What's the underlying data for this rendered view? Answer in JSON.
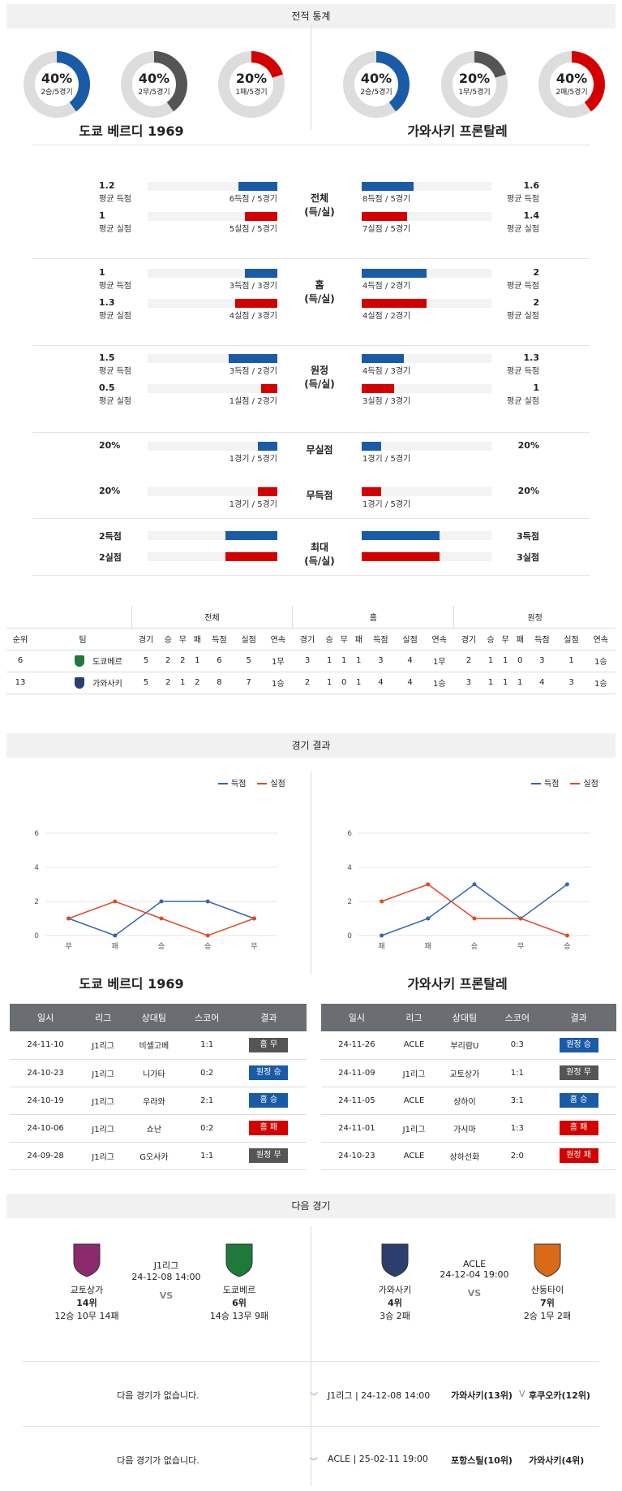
{
  "sections": {
    "stats": "전적 통계",
    "results": "경기 결과",
    "next": "다음 경기"
  },
  "donuts": [
    {
      "pct": "40%",
      "sub": "2승/5경기",
      "value": 0.4,
      "color": "#1a5ba8"
    },
    {
      "pct": "40%",
      "sub": "2무/5경기",
      "value": 0.4,
      "color": "#555555"
    },
    {
      "pct": "20%",
      "sub": "1패/5경기",
      "value": 0.2,
      "color": "#d40000"
    },
    {
      "pct": "40%",
      "sub": "2승/5경기",
      "value": 0.4,
      "color": "#1a5ba8"
    },
    {
      "pct": "20%",
      "sub": "1무/5경기",
      "value": 0.2,
      "color": "#555555"
    },
    {
      "pct": "40%",
      "sub": "2패/5경기",
      "value": 0.4,
      "color": "#d40000"
    }
  ],
  "teams": {
    "home": "도쿄 베르디 1969",
    "away": "가와사키 프론탈레"
  },
  "stat_groups": [
    {
      "mid": [
        "전체",
        "(득/실)"
      ],
      "rows": [
        {
          "l_num": "1.2",
          "l_lbl": "평균 득점",
          "l_cnt": "6득점 / 5경기",
          "l_val": 1.2,
          "r_num": "1.6",
          "r_lbl": "평균 득점",
          "r_cnt": "8득점 / 5경기",
          "r_val": 1.6,
          "color": "blue"
        },
        {
          "l_num": "1",
          "l_lbl": "평균 실점",
          "l_cnt": "5실점 / 5경기",
          "l_val": 1,
          "r_num": "1.4",
          "r_lbl": "평균 실점",
          "r_cnt": "7실점 / 5경기",
          "r_val": 1.4,
          "color": "red"
        }
      ]
    },
    {
      "mid": [
        "홈",
        "(득/실)"
      ],
      "rows": [
        {
          "l_num": "1",
          "l_lbl": "평균 득점",
          "l_cnt": "3득점 / 3경기",
          "l_val": 1,
          "r_num": "2",
          "r_lbl": "평균 득점",
          "r_cnt": "4득점 / 2경기",
          "r_val": 2,
          "color": "blue"
        },
        {
          "l_num": "1.3",
          "l_lbl": "평균 실점",
          "l_cnt": "4실점 / 3경기",
          "l_val": 1.3,
          "r_num": "2",
          "r_lbl": "평균 실점",
          "r_cnt": "4실점 / 2경기",
          "r_val": 2,
          "color": "red"
        }
      ]
    },
    {
      "mid": [
        "원정",
        "(득/실)"
      ],
      "rows": [
        {
          "l_num": "1.5",
          "l_lbl": "평균 득점",
          "l_cnt": "3득점 / 2경기",
          "l_val": 1.5,
          "r_num": "1.3",
          "r_lbl": "평균 득점",
          "r_cnt": "4득점 / 3경기",
          "r_val": 1.3,
          "color": "blue"
        },
        {
          "l_num": "0.5",
          "l_lbl": "평균 실점",
          "l_cnt": "1실점 / 2경기",
          "l_val": 0.5,
          "r_num": "1",
          "r_lbl": "평균 실점",
          "r_cnt": "3실점 / 3경기",
          "r_val": 1,
          "color": "red"
        }
      ]
    },
    {
      "mid": [
        "무실점",
        ""
      ],
      "rows": [
        {
          "l_num": "20%",
          "l_lbl": "",
          "l_cnt": "1경기 / 5경기",
          "l_val": 0.6,
          "r_num": "20%",
          "r_lbl": "",
          "r_cnt": "1경기 / 5경기",
          "r_val": 0.6,
          "color": "blue"
        }
      ]
    },
    {
      "mid": [
        "무득점",
        ""
      ],
      "rows": [
        {
          "l_num": "20%",
          "l_lbl": "",
          "l_cnt": "1경기 / 5경기",
          "l_val": 0.6,
          "r_num": "20%",
          "r_lbl": "",
          "r_cnt": "1경기 / 5경기",
          "r_val": 0.6,
          "color": "red"
        }
      ]
    },
    {
      "mid": [
        "최대",
        "(득/실)"
      ],
      "rows": [
        {
          "l_num": "2득점",
          "l_lbl": "",
          "l_cnt": "",
          "l_val": 1.6,
          "r_num": "3득점",
          "r_lbl": "",
          "r_cnt": "",
          "r_val": 2.4,
          "color": "blue"
        },
        {
          "l_num": "2실점",
          "l_lbl": "",
          "l_cnt": "",
          "l_val": 1.6,
          "r_num": "3실점",
          "r_lbl": "",
          "r_cnt": "",
          "r_val": 2.4,
          "color": "red"
        }
      ]
    }
  ],
  "ranking": {
    "groups": [
      "전체",
      "홈",
      "원정"
    ],
    "cols": [
      "순위",
      "팀",
      "경기",
      "승",
      "무",
      "패",
      "득점",
      "실점",
      "연속"
    ],
    "rows": [
      {
        "rank": "6",
        "team": "도쿄베르",
        "cells": [
          "5",
          "2",
          "2",
          "1",
          "6",
          "5",
          "1무",
          "3",
          "1",
          "1",
          "1",
          "3",
          "4",
          "1무",
          "2",
          "1",
          "1",
          "0",
          "3",
          "1",
          "1승"
        ]
      },
      {
        "rank": "13",
        "team": "가와사키",
        "cells": [
          "5",
          "2",
          "1",
          "2",
          "8",
          "7",
          "1승",
          "2",
          "1",
          "0",
          "1",
          "4",
          "4",
          "1승",
          "3",
          "1",
          "1",
          "1",
          "4",
          "3",
          "1승"
        ]
      }
    ]
  },
  "charts": {
    "legend_scored": "득점",
    "legend_conceded": "실점",
    "chart_data": [
      {
        "type": "line",
        "x": [
          "무",
          "패",
          "승",
          "승",
          "무"
        ],
        "series": [
          {
            "name": "득점",
            "values": [
              1,
              0,
              2,
              2,
              1
            ],
            "color": "#3566b0"
          },
          {
            "name": "실점",
            "values": [
              1,
              2,
              1,
              0,
              1
            ],
            "color": "#e04a2a"
          }
        ],
        "ylim": [
          0,
          6
        ],
        "yticks": [
          "0",
          "2",
          "4",
          "6"
        ]
      },
      {
        "type": "line",
        "x": [
          "패",
          "패",
          "승",
          "무",
          "승"
        ],
        "series": [
          {
            "name": "득점",
            "values": [
              0,
              1,
              3,
              1,
              3
            ],
            "color": "#3566b0"
          },
          {
            "name": "실점",
            "values": [
              2,
              3,
              1,
              1,
              0
            ],
            "color": "#e04a2a"
          }
        ],
        "ylim": [
          0,
          6
        ],
        "yticks": [
          "0",
          "2",
          "4",
          "6"
        ]
      }
    ]
  },
  "results": {
    "headers": [
      "일시",
      "리그",
      "상대팀",
      "스코어",
      "결과"
    ],
    "home": [
      [
        "24-11-10",
        "J1리그",
        "비셀고베",
        "1:1",
        "홈 무",
        "gray"
      ],
      [
        "24-10-23",
        "J1리그",
        "니가타",
        "0:2",
        "원정 승",
        "blue"
      ],
      [
        "24-10-19",
        "J1리그",
        "우라와",
        "2:1",
        "홈 승",
        "blue"
      ],
      [
        "24-10-06",
        "J1리그",
        "쇼난",
        "0:2",
        "홈 패",
        "red"
      ],
      [
        "24-09-28",
        "J1리그",
        "G오사카",
        "1:1",
        "원정 무",
        "gray"
      ]
    ],
    "away": [
      [
        "24-11-26",
        "ACLE",
        "부리람U",
        "0:3",
        "원정 승",
        "blue"
      ],
      [
        "24-11-09",
        "J1리그",
        "교토상가",
        "1:1",
        "원정 무",
        "gray"
      ],
      [
        "24-11-05",
        "ACLE",
        "상하이",
        "3:1",
        "홈 승",
        "blue"
      ],
      [
        "24-11-01",
        "J1리그",
        "가시마",
        "1:3",
        "홈 패",
        "red"
      ],
      [
        "24-10-23",
        "ACLE",
        "상하선화",
        "2:0",
        "원정 패",
        "red"
      ]
    ]
  },
  "next": {
    "left": {
      "league": "J1리그",
      "date": "24-12-08 14:00",
      "vs": "VS",
      "a_name": "교토상가",
      "a_rank": "14위",
      "a_rec": "12승 10무 14패",
      "b_name": "도쿄베르",
      "b_rank": "6위",
      "b_rec": "14승 13무 9패"
    },
    "right": {
      "league": "ACLE",
      "date": "24-12-04 19:00",
      "vs": "VS",
      "a_name": "가와사키",
      "a_rank": "4위",
      "a_rec": "3승 2패",
      "b_name": "산둥타이",
      "b_rank": "7위",
      "b_rec": "2승 1무 2패"
    },
    "rows": [
      {
        "none": "다음 경기가 없습니다.",
        "info": "J1리그 | 24-12-08 14:00",
        "t1": "가와사키(13위)",
        "vs": "V",
        "t2": "후쿠오카(12위)"
      },
      {
        "none": "다음 경기가 없습니다.",
        "info": "ACLE | 25-02-11 19:00",
        "t1": "포항스틸(10위)",
        "vs": "",
        "t2": "가와사키(4위)"
      }
    ]
  }
}
